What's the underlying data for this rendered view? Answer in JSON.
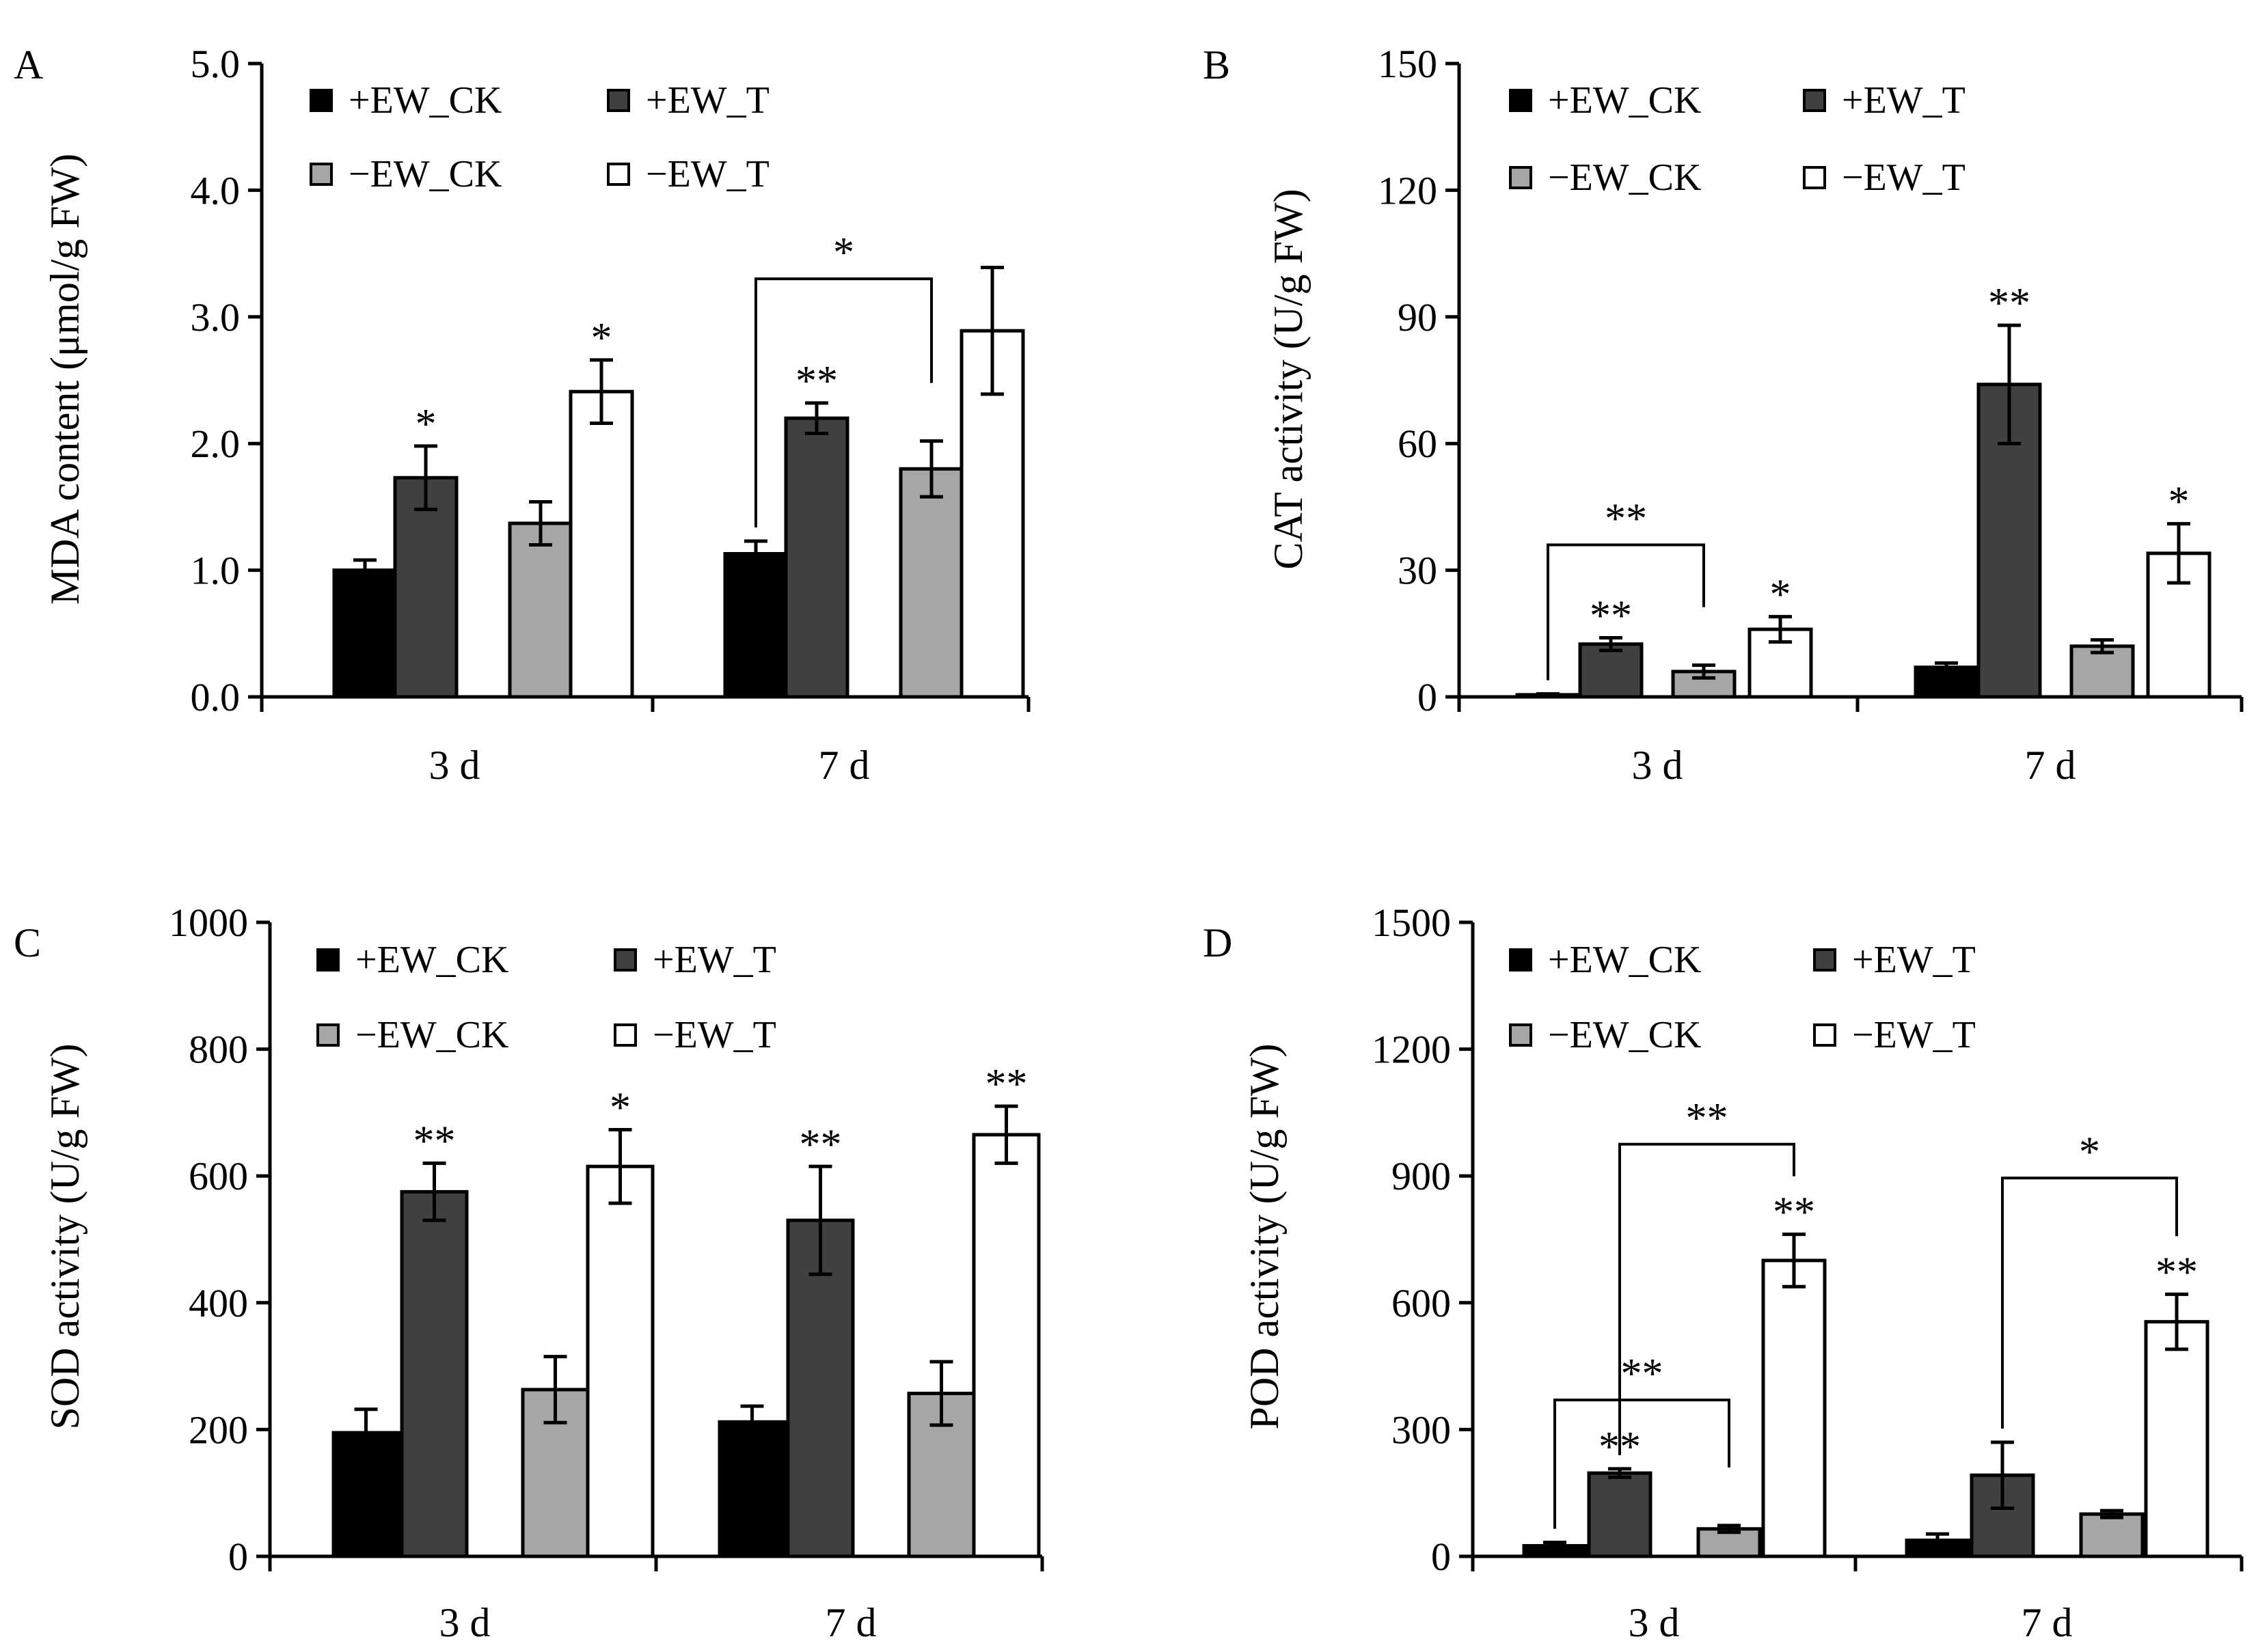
{
  "series_names": [
    "+EW_CK",
    "+EW_T",
    "−EW_CK",
    "−EW_T"
  ],
  "series_colors": [
    "#000000",
    "#404040",
    "#a6a6a6",
    "#ffffff"
  ],
  "chart_data": [
    {
      "type": "bar",
      "panel": "A",
      "ylabel": "MDA content (μmol/g FW)",
      "categories": [
        "3 d",
        "7 d"
      ],
      "ylim": [
        0,
        5
      ],
      "yticks": [
        "0.0",
        "1.0",
        "2.0",
        "3.0",
        "4.0",
        "5.0"
      ],
      "series": [
        {
          "name": "+EW_CK",
          "values": [
            1.0,
            1.13
          ],
          "errors": [
            0.08,
            0.1
          ],
          "sig": [
            "",
            ""
          ]
        },
        {
          "name": "+EW_T",
          "values": [
            1.73,
            2.2
          ],
          "errors": [
            0.25,
            0.12
          ],
          "sig": [
            "*",
            "**"
          ]
        },
        {
          "name": "−EW_CK",
          "values": [
            1.37,
            1.8
          ],
          "errors": [
            0.17,
            0.22
          ],
          "sig": [
            "",
            ""
          ]
        },
        {
          "name": "−EW_T",
          "values": [
            2.41,
            2.89
          ],
          "errors": [
            0.25,
            0.5
          ],
          "sig": [
            "*",
            ""
          ]
        }
      ],
      "brackets": [
        {
          "category": 1,
          "from_series": 0,
          "to_series": 2,
          "y": 3.3,
          "label": "*"
        }
      ]
    },
    {
      "type": "bar",
      "panel": "B",
      "ylabel": "CAT  activity (U/g FW)",
      "categories": [
        "3 d",
        "7 d"
      ],
      "ylim": [
        0,
        150
      ],
      "yticks": [
        "0",
        "30",
        "60",
        "90",
        "120",
        "150"
      ],
      "series": [
        {
          "name": "+EW_CK",
          "values": [
            0.5,
            7
          ],
          "errors": [
            0.2,
            1
          ],
          "sig": [
            "",
            ""
          ]
        },
        {
          "name": "+EW_T",
          "values": [
            12.5,
            74
          ],
          "errors": [
            1.5,
            14
          ],
          "sig": [
            "**",
            "**"
          ]
        },
        {
          "name": "−EW_CK",
          "values": [
            6,
            12
          ],
          "errors": [
            1.5,
            1.5
          ],
          "sig": [
            "",
            ""
          ]
        },
        {
          "name": "−EW_T",
          "values": [
            16,
            34
          ],
          "errors": [
            3,
            7
          ],
          "sig": [
            "*",
            "*"
          ]
        }
      ],
      "brackets": [
        {
          "category": 0,
          "from_series": 0,
          "to_series": 2,
          "y": 36,
          "label": "**"
        }
      ]
    },
    {
      "type": "bar",
      "panel": "C",
      "ylabel": "SOD  activity (U/g FW)",
      "categories": [
        "3 d",
        "7 d"
      ],
      "ylim": [
        0,
        1000
      ],
      "yticks": [
        "0",
        "200",
        "400",
        "600",
        "800",
        "1000"
      ],
      "series": [
        {
          "name": "+EW_CK",
          "values": [
            195,
            212
          ],
          "errors": [
            37,
            25
          ],
          "sig": [
            "",
            ""
          ]
        },
        {
          "name": "+EW_T",
          "values": [
            575,
            530
          ],
          "errors": [
            45,
            85
          ],
          "sig": [
            "**",
            "**"
          ]
        },
        {
          "name": "−EW_CK",
          "values": [
            263,
            257
          ],
          "errors": [
            52,
            50
          ],
          "sig": [
            "",
            ""
          ]
        },
        {
          "name": "−EW_T",
          "values": [
            615,
            665
          ],
          "errors": [
            58,
            45
          ],
          "sig": [
            "*",
            "**"
          ]
        }
      ],
      "brackets": []
    },
    {
      "type": "bar",
      "panel": "D",
      "ylabel": "POD  activity (U/g FW)",
      "categories": [
        "3 d",
        "7 d"
      ],
      "ylim": [
        0,
        1500
      ],
      "yticks": [
        "0",
        "300",
        "600",
        "900",
        "1200",
        "1500"
      ],
      "series": [
        {
          "name": "+EW_CK",
          "values": [
            25,
            38
          ],
          "errors": [
            8,
            15
          ],
          "sig": [
            "",
            ""
          ]
        },
        {
          "name": "+EW_T",
          "values": [
            197,
            192
          ],
          "errors": [
            10,
            78
          ],
          "sig": [
            "**",
            ""
          ]
        },
        {
          "name": "−EW_CK",
          "values": [
            65,
            100
          ],
          "errors": [
            8,
            8
          ],
          "sig": [
            "",
            ""
          ]
        },
        {
          "name": "−EW_T",
          "values": [
            700,
            555
          ],
          "errors": [
            62,
            65
          ],
          "sig": [
            "**",
            "**"
          ]
        }
      ],
      "brackets": [
        {
          "category": 0,
          "from_series": 0,
          "to_series": 2,
          "y": 370,
          "label": "**"
        },
        {
          "category": 0,
          "from_series": 1,
          "to_series": 3,
          "y": 975,
          "label": "**"
        },
        {
          "category": 1,
          "from_series": 1,
          "to_series": 3,
          "y": 895,
          "label": "*"
        }
      ]
    }
  ]
}
